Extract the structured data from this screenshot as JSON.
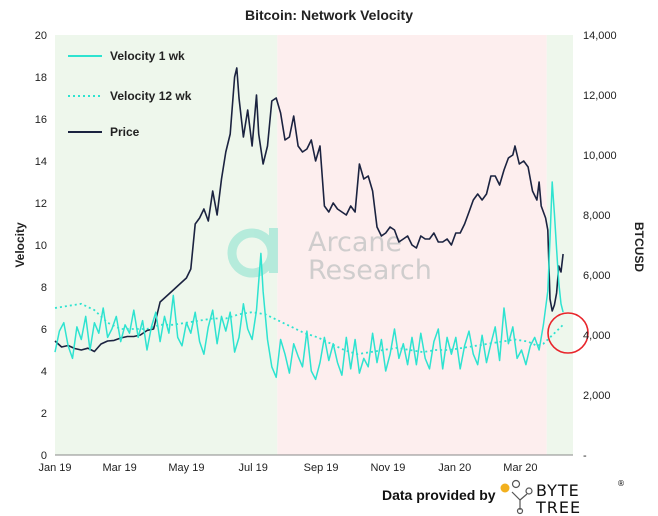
{
  "chart_data": {
    "type": "line",
    "title": "Bitcoin: Network Velocity",
    "ylabel_left": "Velocity",
    "ylabel_right": "BTCUSD",
    "ylim_left": [
      0,
      20
    ],
    "ylim_right": [
      0,
      14000
    ],
    "left_ticks": [
      0,
      2,
      4,
      6,
      8,
      10,
      12,
      14,
      16,
      18,
      20
    ],
    "right_ticks": [
      "-",
      "2,000",
      "4,000",
      "6,000",
      "8,000",
      "10,000",
      "12,000",
      "14,000"
    ],
    "x_ticks": [
      "Jan 19",
      "Mar 19",
      "May 19",
      "Jul 19",
      "Sep 19",
      "Nov 19",
      "Jan 20",
      "Mar 20"
    ],
    "x_range_days": [
      0,
      473
    ],
    "tick_days": [
      0,
      59,
      120,
      181,
      243,
      304,
      365,
      425
    ],
    "regions": [
      {
        "name": "green",
        "from_day": 0,
        "to_day": 203,
        "color": "#eef7ec"
      },
      {
        "name": "pink",
        "from_day": 203,
        "to_day": 449,
        "color": "#fdeeee"
      },
      {
        "name": "green",
        "from_day": 449,
        "to_day": 473,
        "color": "#eef7ec"
      }
    ],
    "series": [
      {
        "name": "Velocity 1 wk",
        "axis": "left",
        "color": "#2ee3d0",
        "style": "solid",
        "points": [
          [
            0,
            4.9
          ],
          [
            4,
            5.9
          ],
          [
            8,
            6.3
          ],
          [
            12,
            5.2
          ],
          [
            16,
            4.6
          ],
          [
            20,
            6.1
          ],
          [
            24,
            5.5
          ],
          [
            28,
            6.6
          ],
          [
            32,
            5.0
          ],
          [
            36,
            6.3
          ],
          [
            40,
            5.8
          ],
          [
            44,
            7.0
          ],
          [
            48,
            5.6
          ],
          [
            52,
            6.0
          ],
          [
            56,
            6.6
          ],
          [
            60,
            5.4
          ],
          [
            64,
            6.2
          ],
          [
            68,
            5.8
          ],
          [
            72,
            6.9
          ],
          [
            76,
            5.6
          ],
          [
            80,
            6.4
          ],
          [
            84,
            5.0
          ],
          [
            88,
            6.1
          ],
          [
            92,
            6.8
          ],
          [
            96,
            5.4
          ],
          [
            100,
            6.6
          ],
          [
            104,
            5.8
          ],
          [
            108,
            7.6
          ],
          [
            112,
            5.6
          ],
          [
            116,
            5.2
          ],
          [
            120,
            6.3
          ],
          [
            124,
            5.8
          ],
          [
            128,
            6.8
          ],
          [
            132,
            5.4
          ],
          [
            136,
            4.8
          ],
          [
            140,
            6.1
          ],
          [
            144,
            6.9
          ],
          [
            148,
            5.3
          ],
          [
            152,
            6.6
          ],
          [
            156,
            5.9
          ],
          [
            160,
            6.8
          ],
          [
            164,
            4.9
          ],
          [
            168,
            5.6
          ],
          [
            172,
            7.2
          ],
          [
            176,
            6.0
          ],
          [
            180,
            5.5
          ],
          [
            184,
            6.9
          ],
          [
            188,
            9.6
          ],
          [
            190,
            7.8
          ],
          [
            194,
            5.5
          ],
          [
            198,
            4.2
          ],
          [
            202,
            3.7
          ],
          [
            206,
            5.5
          ],
          [
            210,
            4.8
          ],
          [
            214,
            3.9
          ],
          [
            218,
            5.3
          ],
          [
            222,
            4.7
          ],
          [
            226,
            4.2
          ],
          [
            230,
            5.9
          ],
          [
            234,
            4.0
          ],
          [
            238,
            3.6
          ],
          [
            242,
            4.4
          ],
          [
            246,
            5.6
          ],
          [
            250,
            4.5
          ],
          [
            254,
            5.3
          ],
          [
            258,
            4.4
          ],
          [
            262,
            3.8
          ],
          [
            266,
            5.6
          ],
          [
            270,
            4.1
          ],
          [
            274,
            5.5
          ],
          [
            278,
            3.9
          ],
          [
            282,
            4.6
          ],
          [
            286,
            4.2
          ],
          [
            290,
            5.8
          ],
          [
            294,
            4.4
          ],
          [
            298,
            5.5
          ],
          [
            302,
            4.0
          ],
          [
            306,
            4.8
          ],
          [
            310,
            6.0
          ],
          [
            314,
            4.6
          ],
          [
            318,
            5.3
          ],
          [
            322,
            4.3
          ],
          [
            326,
            5.6
          ],
          [
            330,
            4.3
          ],
          [
            334,
            5.8
          ],
          [
            338,
            4.6
          ],
          [
            342,
            4.1
          ],
          [
            346,
            5.4
          ],
          [
            350,
            6.0
          ],
          [
            354,
            4.1
          ],
          [
            358,
            5.6
          ],
          [
            362,
            4.8
          ],
          [
            366,
            5.6
          ],
          [
            370,
            4.1
          ],
          [
            374,
            5.2
          ],
          [
            378,
            5.9
          ],
          [
            382,
            4.8
          ],
          [
            386,
            4.3
          ],
          [
            390,
            5.7
          ],
          [
            394,
            4.4
          ],
          [
            398,
            5.3
          ],
          [
            402,
            6.1
          ],
          [
            406,
            4.5
          ],
          [
            410,
            7.0
          ],
          [
            414,
            5.3
          ],
          [
            418,
            6.1
          ],
          [
            422,
            4.6
          ],
          [
            426,
            5.0
          ],
          [
            430,
            4.3
          ],
          [
            434,
            5.2
          ],
          [
            438,
            5.6
          ],
          [
            442,
            5.0
          ],
          [
            446,
            6.2
          ],
          [
            450,
            7.8
          ],
          [
            452,
            10.3
          ],
          [
            454,
            13.0
          ],
          [
            456,
            11.5
          ],
          [
            458,
            9.8
          ],
          [
            460,
            8.2
          ],
          [
            462,
            7.2
          ],
          [
            464,
            6.8
          ]
        ]
      },
      {
        "name": "Velocity 12 wk",
        "axis": "left",
        "color": "#2ee3d0",
        "style": "dotted",
        "points": [
          [
            0,
            7.0
          ],
          [
            12,
            7.1
          ],
          [
            24,
            7.2
          ],
          [
            36,
            6.9
          ],
          [
            48,
            6.3
          ],
          [
            60,
            6.0
          ],
          [
            72,
            6.0
          ],
          [
            84,
            6.0
          ],
          [
            96,
            6.2
          ],
          [
            108,
            6.2
          ],
          [
            120,
            6.3
          ],
          [
            132,
            6.4
          ],
          [
            144,
            6.5
          ],
          [
            156,
            6.5
          ],
          [
            168,
            6.7
          ],
          [
            180,
            6.8
          ],
          [
            192,
            6.7
          ],
          [
            204,
            6.4
          ],
          [
            216,
            6.1
          ],
          [
            228,
            5.8
          ],
          [
            240,
            5.6
          ],
          [
            252,
            5.3
          ],
          [
            264,
            5.0
          ],
          [
            276,
            4.8
          ],
          [
            288,
            4.9
          ],
          [
            300,
            5.0
          ],
          [
            312,
            5.1
          ],
          [
            324,
            5.0
          ],
          [
            336,
            4.9
          ],
          [
            348,
            5.0
          ],
          [
            360,
            5.0
          ],
          [
            372,
            5.1
          ],
          [
            384,
            5.2
          ],
          [
            396,
            5.3
          ],
          [
            408,
            5.4
          ],
          [
            420,
            5.5
          ],
          [
            432,
            5.4
          ],
          [
            440,
            5.2
          ],
          [
            446,
            5.3
          ],
          [
            452,
            5.6
          ],
          [
            458,
            5.9
          ],
          [
            464,
            6.2
          ]
        ]
      },
      {
        "name": "Price",
        "axis": "right",
        "color": "#1b2340",
        "style": "solid",
        "points": [
          [
            0,
            3800
          ],
          [
            6,
            3600
          ],
          [
            12,
            3650
          ],
          [
            18,
            3550
          ],
          [
            24,
            3500
          ],
          [
            30,
            3560
          ],
          [
            36,
            3450
          ],
          [
            42,
            3700
          ],
          [
            48,
            3800
          ],
          [
            54,
            3820
          ],
          [
            60,
            3900
          ],
          [
            66,
            3950
          ],
          [
            72,
            3950
          ],
          [
            78,
            4000
          ],
          [
            84,
            4150
          ],
          [
            90,
            4200
          ],
          [
            96,
            5100
          ],
          [
            102,
            5300
          ],
          [
            108,
            5500
          ],
          [
            114,
            5700
          ],
          [
            120,
            5900
          ],
          [
            124,
            6200
          ],
          [
            128,
            7700
          ],
          [
            132,
            7900
          ],
          [
            136,
            8200
          ],
          [
            140,
            7800
          ],
          [
            144,
            8800
          ],
          [
            148,
            8000
          ],
          [
            152,
            9200
          ],
          [
            156,
            10100
          ],
          [
            160,
            10700
          ],
          [
            164,
            12600
          ],
          [
            166,
            12900
          ],
          [
            168,
            11900
          ],
          [
            172,
            10600
          ],
          [
            176,
            11500
          ],
          [
            180,
            10300
          ],
          [
            184,
            12000
          ],
          [
            186,
            10700
          ],
          [
            190,
            9700
          ],
          [
            194,
            10300
          ],
          [
            198,
            11800
          ],
          [
            202,
            11900
          ],
          [
            206,
            11400
          ],
          [
            210,
            10500
          ],
          [
            214,
            10600
          ],
          [
            218,
            11300
          ],
          [
            222,
            10300
          ],
          [
            226,
            10100
          ],
          [
            230,
            10200
          ],
          [
            234,
            10500
          ],
          [
            238,
            9800
          ],
          [
            242,
            10300
          ],
          [
            246,
            8300
          ],
          [
            250,
            8100
          ],
          [
            254,
            8400
          ],
          [
            258,
            8200
          ],
          [
            262,
            8100
          ],
          [
            266,
            8000
          ],
          [
            270,
            8300
          ],
          [
            274,
            8100
          ],
          [
            278,
            9700
          ],
          [
            282,
            9200
          ],
          [
            286,
            9300
          ],
          [
            290,
            8800
          ],
          [
            294,
            7600
          ],
          [
            298,
            7300
          ],
          [
            302,
            7400
          ],
          [
            306,
            7600
          ],
          [
            310,
            7500
          ],
          [
            314,
            7100
          ],
          [
            318,
            7200
          ],
          [
            322,
            7300
          ],
          [
            326,
            7000
          ],
          [
            330,
            6900
          ],
          [
            334,
            7300
          ],
          [
            338,
            7200
          ],
          [
            342,
            7200
          ],
          [
            346,
            7400
          ],
          [
            350,
            7100
          ],
          [
            354,
            7100
          ],
          [
            358,
            7200
          ],
          [
            362,
            7000
          ],
          [
            366,
            7400
          ],
          [
            370,
            7400
          ],
          [
            374,
            7700
          ],
          [
            378,
            8100
          ],
          [
            382,
            8500
          ],
          [
            386,
            8700
          ],
          [
            390,
            8500
          ],
          [
            394,
            8700
          ],
          [
            398,
            9300
          ],
          [
            402,
            9300
          ],
          [
            406,
            9000
          ],
          [
            410,
            9500
          ],
          [
            414,
            9900
          ],
          [
            418,
            10000
          ],
          [
            420,
            10300
          ],
          [
            424,
            9700
          ],
          [
            428,
            9800
          ],
          [
            432,
            9600
          ],
          [
            436,
            8800
          ],
          [
            440,
            8500
          ],
          [
            442,
            9100
          ],
          [
            444,
            8300
          ],
          [
            448,
            7900
          ],
          [
            450,
            7500
          ],
          [
            452,
            5200
          ],
          [
            454,
            4800
          ],
          [
            456,
            5000
          ],
          [
            458,
            5400
          ],
          [
            460,
            6300
          ],
          [
            462,
            6100
          ],
          [
            464,
            6700
          ]
        ]
      }
    ],
    "legend": [
      "Velocity 1 wk",
      "Velocity 12 wk",
      "Price"
    ]
  },
  "watermark": {
    "line1": "Arcane",
    "line2": "Research"
  },
  "footer": {
    "text": "Data provided by",
    "brand_top": "BYTE",
    "brand_bottom": "TREE",
    "brand_mark": "®"
  }
}
